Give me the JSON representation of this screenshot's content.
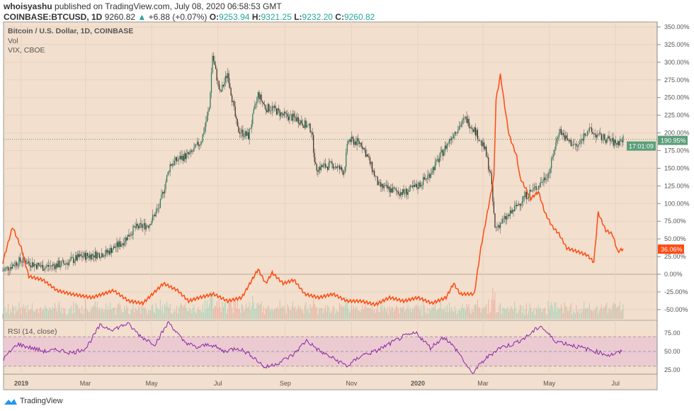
{
  "header": {
    "author": "whoisyashu",
    "published": "published on TradingView.com, July 08, 2020 06:58:53 GMT",
    "symbol": "COINBASE:BTCUSD, 1D",
    "last": "9260.82",
    "change": "+6.88 (+0.07%)",
    "o_label": "O:",
    "o": "9253.94",
    "h_label": "H:",
    "h": "9321.25",
    "l_label": "L:",
    "l": "9232.20",
    "c_label": "C:",
    "c": "9260.82"
  },
  "legend": {
    "main": "Bitcoin / U.S. Dollar, 1D, COINBASE",
    "vol": "Vol",
    "vix": "VIX, CBOE",
    "rsi": "RSI (14, close)"
  },
  "branding": "TradingView",
  "colors": {
    "background": "#f2dfcd",
    "up": "#26a69a",
    "down": "#3a2a22",
    "vix": "#ff4a12",
    "rsi": "#8e24aa",
    "rsi_band": "#e8c6d2",
    "last_price": "#5b9e7a"
  },
  "chart_data": [
    {
      "type": "candlestick",
      "title": "Bitcoin / U.S. Dollar, 1D, COINBASE",
      "ylim": [
        -60,
        355
      ],
      "yticks": [
        "350.00%",
        "325.00%",
        "300.00%",
        "275.00%",
        "250.00%",
        "225.00%",
        "200.00%",
        "175.00%",
        "150.00%",
        "125.00%",
        "100.00%",
        "75.00%",
        "50.00%",
        "25.00%",
        "0.00%",
        "-25.00%",
        "-50.00%"
      ],
      "xticks": [
        "2019",
        "Mar",
        "May",
        "Jul",
        "Sep",
        "Nov",
        "2020",
        "Mar",
        "May",
        "Jul"
      ],
      "last_value_label": "190.95%",
      "countdown_label": "17:01:09",
      "series": [
        {
          "points": [
            [
              "2018-12-15",
              5
            ],
            [
              "2019-01-01",
              20
            ],
            [
              "2019-01-21",
              10
            ],
            [
              "2019-02-09",
              15
            ],
            [
              "2019-02-25",
              25
            ],
            [
              "2019-03-20",
              30
            ],
            [
              "2019-04-04",
              45
            ],
            [
              "2019-04-15",
              65
            ],
            [
              "2019-04-28",
              70
            ],
            [
              "2019-05-08",
              95
            ],
            [
              "2019-05-18",
              155
            ],
            [
              "2019-05-28",
              165
            ],
            [
              "2019-06-06",
              170
            ],
            [
              "2019-06-16",
              190
            ],
            [
              "2019-06-23",
              235
            ],
            [
              "2019-06-26",
              310
            ],
            [
              "2019-07-03",
              255
            ],
            [
              "2019-07-10",
              285
            ],
            [
              "2019-07-19",
              205
            ],
            [
              "2019-07-29",
              195
            ],
            [
              "2019-08-07",
              255
            ],
            [
              "2019-08-14",
              235
            ],
            [
              "2019-08-20",
              235
            ],
            [
              "2019-08-30",
              225
            ],
            [
              "2019-09-12",
              220
            ],
            [
              "2019-09-25",
              205
            ],
            [
              "2019-09-29",
              150
            ],
            [
              "2019-10-15",
              155
            ],
            [
              "2019-10-25",
              145
            ],
            [
              "2019-10-29",
              190
            ],
            [
              "2019-11-10",
              185
            ],
            [
              "2019-11-16",
              165
            ],
            [
              "2019-11-26",
              125
            ],
            [
              "2019-12-06",
              120
            ],
            [
              "2019-12-19",
              115
            ],
            [
              "2020-01-01",
              125
            ],
            [
              "2020-01-11",
              140
            ],
            [
              "2020-01-21",
              165
            ],
            [
              "2020-02-03",
              200
            ],
            [
              "2020-02-14",
              220
            ],
            [
              "2020-02-22",
              205
            ],
            [
              "2020-03-03",
              175
            ],
            [
              "2020-03-08",
              140
            ],
            [
              "2020-03-12",
              65
            ],
            [
              "2020-03-26",
              85
            ],
            [
              "2020-04-08",
              110
            ],
            [
              "2020-04-21",
              125
            ],
            [
              "2020-05-01",
              145
            ],
            [
              "2020-05-10",
              205
            ],
            [
              "2020-05-17",
              190
            ],
            [
              "2020-05-27",
              180
            ],
            [
              "2020-06-05",
              205
            ],
            [
              "2020-06-15",
              195
            ],
            [
              "2020-06-25",
              190
            ],
            [
              "2020-07-01",
              185
            ],
            [
              "2020-07-08",
              190.95
            ]
          ]
        }
      ]
    },
    {
      "type": "line",
      "title": "VIX, CBOE",
      "last_value_label": "36.06%",
      "series": [
        {
          "points": [
            [
              "2018-12-15",
              17
            ],
            [
              "2018-12-24",
              67
            ],
            [
              "2019-01-01",
              37
            ],
            [
              "2019-01-08",
              -3
            ],
            [
              "2019-01-21",
              -8
            ],
            [
              "2019-02-03",
              -23
            ],
            [
              "2019-02-16",
              -28
            ],
            [
              "2019-03-07",
              -33
            ],
            [
              "2019-03-27",
              -23
            ],
            [
              "2019-04-10",
              -38
            ],
            [
              "2019-04-23",
              -41
            ],
            [
              "2019-05-12",
              -13
            ],
            [
              "2019-05-25",
              -23
            ],
            [
              "2019-06-04",
              -38
            ],
            [
              "2019-06-14",
              -33
            ],
            [
              "2019-06-27",
              -28
            ],
            [
              "2019-07-10",
              -38
            ],
            [
              "2019-07-23",
              -33
            ],
            [
              "2019-08-07",
              7
            ],
            [
              "2019-08-14",
              -13
            ],
            [
              "2019-08-20",
              2
            ],
            [
              "2019-08-30",
              -13
            ],
            [
              "2019-09-09",
              -8
            ],
            [
              "2019-09-19",
              -28
            ],
            [
              "2019-10-02",
              -33
            ],
            [
              "2019-10-15",
              -28
            ],
            [
              "2019-10-28",
              -38
            ],
            [
              "2019-11-10",
              -38
            ],
            [
              "2019-11-23",
              -43
            ],
            [
              "2019-12-06",
              -33
            ],
            [
              "2019-12-19",
              -38
            ],
            [
              "2020-01-01",
              -33
            ],
            [
              "2020-01-14",
              -41
            ],
            [
              "2020-01-27",
              -33
            ],
            [
              "2020-02-03",
              -13
            ],
            [
              "2020-02-09",
              -28
            ],
            [
              "2020-02-22",
              -28
            ],
            [
              "2020-02-28",
              37
            ],
            [
              "2020-03-05",
              87
            ],
            [
              "2020-03-11",
              137
            ],
            [
              "2020-03-13",
              247
            ],
            [
              "2020-03-17",
              282
            ],
            [
              "2020-03-22",
              227
            ],
            [
              "2020-03-25",
              197
            ],
            [
              "2020-04-01",
              167
            ],
            [
              "2020-04-04",
              137
            ],
            [
              "2020-04-14",
              107
            ],
            [
              "2020-04-21",
              117
            ],
            [
              "2020-04-27",
              87
            ],
            [
              "2020-05-04",
              67
            ],
            [
              "2020-05-10",
              57
            ],
            [
              "2020-05-17",
              37
            ],
            [
              "2020-05-27",
              32
            ],
            [
              "2020-06-05",
              27
            ],
            [
              "2020-06-11",
              17
            ],
            [
              "2020-06-15",
              87
            ],
            [
              "2020-06-22",
              62
            ],
            [
              "2020-06-28",
              57
            ],
            [
              "2020-07-03",
              32
            ],
            [
              "2020-07-08",
              36.06
            ]
          ]
        }
      ]
    },
    {
      "type": "line",
      "title": "RSI (14, close)",
      "ylim": [
        10,
        95
      ],
      "yticks": [
        "75.00",
        "50.00",
        "25.00"
      ],
      "band": [
        30,
        70
      ],
      "series": [
        {
          "values": [
            40,
            60,
            55,
            50,
            52,
            48,
            55,
            85,
            80,
            88,
            70,
            60,
            90,
            65,
            55,
            60,
            50,
            55,
            45,
            28,
            35,
            45,
            65,
            50,
            40,
            30,
            45,
            50,
            60,
            70,
            75,
            55,
            70,
            50,
            20,
            40,
            55,
            60,
            70,
            85,
            65,
            60,
            55,
            50,
            45,
            50
          ]
        }
      ]
    }
  ]
}
